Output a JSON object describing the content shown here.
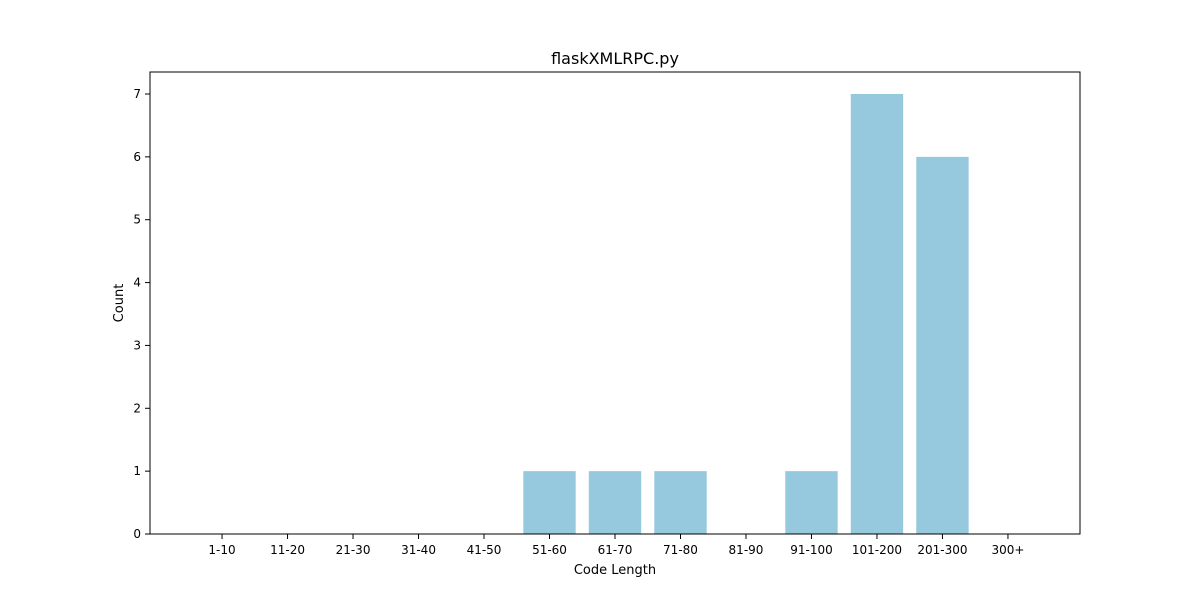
{
  "chart_data": {
    "type": "bar",
    "title": "flaskXMLRPC.py",
    "xlabel": "Code Length",
    "ylabel": "Count",
    "categories": [
      "1-10",
      "11-20",
      "21-30",
      "31-40",
      "41-50",
      "51-60",
      "61-70",
      "71-80",
      "81-90",
      "91-100",
      "101-200",
      "201-300",
      "300+"
    ],
    "values": [
      0,
      0,
      0,
      0,
      0,
      1,
      1,
      1,
      0,
      1,
      7,
      6,
      0
    ],
    "yticks": [
      "0",
      "1",
      "2",
      "3",
      "4",
      "5",
      "6",
      "7"
    ],
    "ylim": [
      0,
      7.35
    ],
    "grid": false,
    "bar_color": "#96c9dd"
  }
}
